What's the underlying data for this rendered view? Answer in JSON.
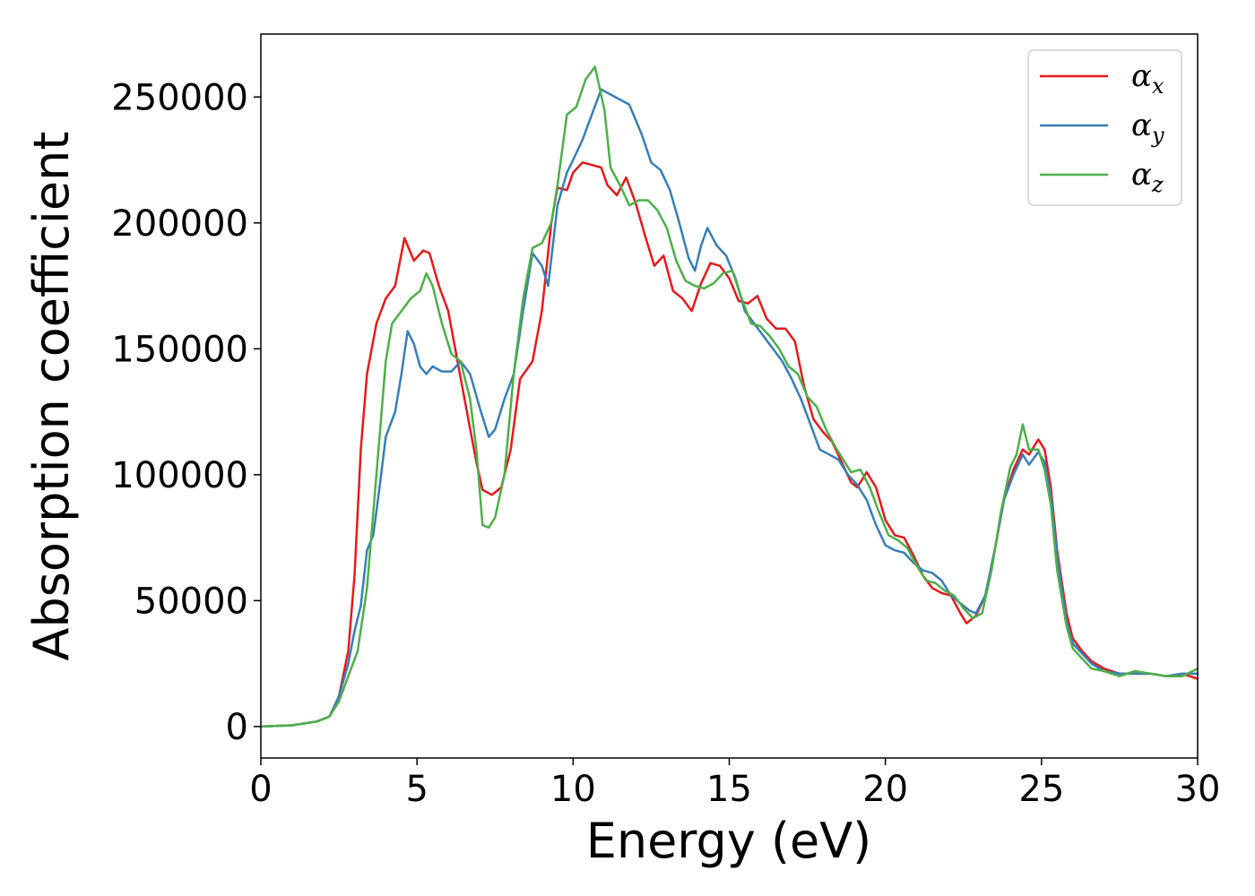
{
  "chart_data": {
    "type": "line",
    "xlabel": "Energy (eV)",
    "ylabel": "Absorption coefficient",
    "xlim": [
      0,
      30
    ],
    "ylim": [
      -12500,
      275000
    ],
    "xticks": [
      0,
      5,
      10,
      15,
      20,
      25,
      30
    ],
    "yticks": [
      0,
      50000,
      100000,
      150000,
      200000,
      250000
    ],
    "grid": false,
    "legend_position": "top-right",
    "series": [
      {
        "name": "α_x",
        "legend_base": "α",
        "legend_sub": "x",
        "color": "#e41a1c",
        "points": [
          [
            0,
            0
          ],
          [
            1,
            500
          ],
          [
            1.8,
            2000
          ],
          [
            2.2,
            4000
          ],
          [
            2.5,
            12000
          ],
          [
            2.8,
            30000
          ],
          [
            3.0,
            60000
          ],
          [
            3.2,
            110000
          ],
          [
            3.4,
            140000
          ],
          [
            3.7,
            160000
          ],
          [
            4.0,
            170000
          ],
          [
            4.3,
            175000
          ],
          [
            4.6,
            194000
          ],
          [
            4.9,
            185000
          ],
          [
            5.2,
            189000
          ],
          [
            5.4,
            188000
          ],
          [
            5.7,
            175000
          ],
          [
            6.0,
            165000
          ],
          [
            6.3,
            145000
          ],
          [
            6.6,
            125000
          ],
          [
            6.9,
            105000
          ],
          [
            7.1,
            94000
          ],
          [
            7.4,
            92000
          ],
          [
            7.7,
            95000
          ],
          [
            8.0,
            110000
          ],
          [
            8.3,
            138000
          ],
          [
            8.7,
            145000
          ],
          [
            9.0,
            165000
          ],
          [
            9.3,
            200000
          ],
          [
            9.5,
            214000
          ],
          [
            9.8,
            213000
          ],
          [
            10.0,
            220000
          ],
          [
            10.3,
            224000
          ],
          [
            10.6,
            223000
          ],
          [
            10.9,
            222000
          ],
          [
            11.1,
            215000
          ],
          [
            11.4,
            211000
          ],
          [
            11.7,
            218000
          ],
          [
            12.0,
            208000
          ],
          [
            12.3,
            195000
          ],
          [
            12.6,
            183000
          ],
          [
            12.9,
            187000
          ],
          [
            13.2,
            173000
          ],
          [
            13.5,
            170000
          ],
          [
            13.8,
            165000
          ],
          [
            14.1,
            176000
          ],
          [
            14.4,
            184000
          ],
          [
            14.7,
            183000
          ],
          [
            15.0,
            178000
          ],
          [
            15.3,
            169000
          ],
          [
            15.6,
            168000
          ],
          [
            15.9,
            171000
          ],
          [
            16.2,
            162000
          ],
          [
            16.5,
            158000
          ],
          [
            16.8,
            158000
          ],
          [
            17.1,
            153000
          ],
          [
            17.4,
            135000
          ],
          [
            17.7,
            122000
          ],
          [
            18.0,
            117000
          ],
          [
            18.3,
            113000
          ],
          [
            18.6,
            105000
          ],
          [
            18.9,
            97000
          ],
          [
            19.1,
            95000
          ],
          [
            19.4,
            101000
          ],
          [
            19.7,
            95000
          ],
          [
            20.0,
            82000
          ],
          [
            20.3,
            76000
          ],
          [
            20.6,
            75000
          ],
          [
            20.9,
            68000
          ],
          [
            21.2,
            60000
          ],
          [
            21.5,
            55000
          ],
          [
            21.8,
            53000
          ],
          [
            22.1,
            52000
          ],
          [
            22.4,
            45000
          ],
          [
            22.6,
            41000
          ],
          [
            22.9,
            44000
          ],
          [
            23.2,
            52000
          ],
          [
            23.5,
            70000
          ],
          [
            23.8,
            90000
          ],
          [
            24.1,
            102000
          ],
          [
            24.4,
            110000
          ],
          [
            24.6,
            108000
          ],
          [
            24.9,
            114000
          ],
          [
            25.1,
            110000
          ],
          [
            25.3,
            95000
          ],
          [
            25.5,
            70000
          ],
          [
            25.8,
            45000
          ],
          [
            26.0,
            35000
          ],
          [
            26.3,
            30000
          ],
          [
            26.6,
            26000
          ],
          [
            27.0,
            23000
          ],
          [
            27.5,
            21000
          ],
          [
            28.0,
            21000
          ],
          [
            28.5,
            21000
          ],
          [
            29.0,
            20000
          ],
          [
            29.5,
            21000
          ],
          [
            30,
            19000
          ]
        ]
      },
      {
        "name": "α_y",
        "legend_base": "α",
        "legend_sub": "y",
        "color": "#377eb8",
        "points": [
          [
            0,
            0
          ],
          [
            1,
            500
          ],
          [
            1.8,
            2000
          ],
          [
            2.2,
            4000
          ],
          [
            2.5,
            12000
          ],
          [
            2.8,
            25000
          ],
          [
            3.0,
            38000
          ],
          [
            3.2,
            48000
          ],
          [
            3.4,
            70000
          ],
          [
            3.6,
            76000
          ],
          [
            3.8,
            95000
          ],
          [
            4.0,
            115000
          ],
          [
            4.3,
            125000
          ],
          [
            4.5,
            140000
          ],
          [
            4.7,
            157000
          ],
          [
            4.9,
            152000
          ],
          [
            5.1,
            143000
          ],
          [
            5.3,
            140000
          ],
          [
            5.5,
            143000
          ],
          [
            5.8,
            141000
          ],
          [
            6.1,
            141000
          ],
          [
            6.4,
            145000
          ],
          [
            6.7,
            140000
          ],
          [
            7.0,
            127000
          ],
          [
            7.3,
            115000
          ],
          [
            7.5,
            118000
          ],
          [
            7.8,
            130000
          ],
          [
            8.1,
            140000
          ],
          [
            8.4,
            165000
          ],
          [
            8.7,
            188000
          ],
          [
            9.0,
            183000
          ],
          [
            9.2,
            175000
          ],
          [
            9.5,
            207000
          ],
          [
            9.8,
            220000
          ],
          [
            10.0,
            225000
          ],
          [
            10.3,
            233000
          ],
          [
            10.6,
            243000
          ],
          [
            10.9,
            253000
          ],
          [
            11.2,
            251000
          ],
          [
            11.5,
            249000
          ],
          [
            11.8,
            247000
          ],
          [
            12.2,
            235000
          ],
          [
            12.5,
            224000
          ],
          [
            12.8,
            221000
          ],
          [
            13.1,
            213000
          ],
          [
            13.4,
            200000
          ],
          [
            13.7,
            186000
          ],
          [
            13.9,
            181000
          ],
          [
            14.1,
            191000
          ],
          [
            14.3,
            198000
          ],
          [
            14.6,
            191000
          ],
          [
            14.9,
            187000
          ],
          [
            15.2,
            178000
          ],
          [
            15.5,
            165000
          ],
          [
            15.8,
            160000
          ],
          [
            16.1,
            155000
          ],
          [
            16.4,
            150000
          ],
          [
            16.7,
            145000
          ],
          [
            17.0,
            138000
          ],
          [
            17.3,
            130000
          ],
          [
            17.6,
            120000
          ],
          [
            17.9,
            110000
          ],
          [
            18.2,
            108000
          ],
          [
            18.5,
            106000
          ],
          [
            18.8,
            100000
          ],
          [
            19.1,
            96000
          ],
          [
            19.4,
            90000
          ],
          [
            19.7,
            80000
          ],
          [
            20.0,
            72000
          ],
          [
            20.3,
            70000
          ],
          [
            20.6,
            69000
          ],
          [
            20.9,
            65000
          ],
          [
            21.2,
            62000
          ],
          [
            21.5,
            61000
          ],
          [
            21.8,
            58000
          ],
          [
            22.1,
            52000
          ],
          [
            22.4,
            49000
          ],
          [
            22.7,
            46000
          ],
          [
            22.9,
            45000
          ],
          [
            23.2,
            52000
          ],
          [
            23.5,
            70000
          ],
          [
            23.8,
            90000
          ],
          [
            24.1,
            100000
          ],
          [
            24.4,
            108000
          ],
          [
            24.6,
            104000
          ],
          [
            24.9,
            109000
          ],
          [
            25.1,
            105000
          ],
          [
            25.3,
            92000
          ],
          [
            25.5,
            68000
          ],
          [
            25.8,
            42000
          ],
          [
            26.0,
            33000
          ],
          [
            26.3,
            29000
          ],
          [
            26.6,
            25000
          ],
          [
            27.0,
            22000
          ],
          [
            27.5,
            21000
          ],
          [
            28.0,
            21000
          ],
          [
            28.5,
            21000
          ],
          [
            29.0,
            20000
          ],
          [
            29.5,
            21000
          ],
          [
            30,
            21000
          ]
        ]
      },
      {
        "name": "α_z",
        "legend_base": "α",
        "legend_sub": "z",
        "color": "#4daf4a",
        "points": [
          [
            0,
            0
          ],
          [
            1,
            500
          ],
          [
            1.8,
            2000
          ],
          [
            2.2,
            4000
          ],
          [
            2.5,
            10000
          ],
          [
            2.8,
            20000
          ],
          [
            3.1,
            30000
          ],
          [
            3.4,
            55000
          ],
          [
            3.6,
            85000
          ],
          [
            3.8,
            115000
          ],
          [
            4.0,
            145000
          ],
          [
            4.2,
            160000
          ],
          [
            4.5,
            165000
          ],
          [
            4.8,
            170000
          ],
          [
            5.1,
            173000
          ],
          [
            5.3,
            180000
          ],
          [
            5.5,
            175000
          ],
          [
            5.8,
            160000
          ],
          [
            6.1,
            148000
          ],
          [
            6.4,
            145000
          ],
          [
            6.7,
            130000
          ],
          [
            6.9,
            110000
          ],
          [
            7.1,
            80000
          ],
          [
            7.3,
            79000
          ],
          [
            7.5,
            83000
          ],
          [
            7.8,
            100000
          ],
          [
            8.1,
            140000
          ],
          [
            8.4,
            170000
          ],
          [
            8.7,
            190000
          ],
          [
            9.0,
            192000
          ],
          [
            9.3,
            200000
          ],
          [
            9.5,
            215000
          ],
          [
            9.8,
            243000
          ],
          [
            10.1,
            246000
          ],
          [
            10.4,
            257000
          ],
          [
            10.7,
            262000
          ],
          [
            11.0,
            245000
          ],
          [
            11.2,
            222000
          ],
          [
            11.5,
            215000
          ],
          [
            11.8,
            207000
          ],
          [
            12.1,
            209000
          ],
          [
            12.4,
            209000
          ],
          [
            12.7,
            205000
          ],
          [
            13.0,
            198000
          ],
          [
            13.3,
            185000
          ],
          [
            13.6,
            177000
          ],
          [
            13.9,
            175000
          ],
          [
            14.2,
            174000
          ],
          [
            14.5,
            176000
          ],
          [
            14.8,
            180000
          ],
          [
            15.1,
            181000
          ],
          [
            15.4,
            170000
          ],
          [
            15.7,
            160000
          ],
          [
            16.0,
            159000
          ],
          [
            16.3,
            155000
          ],
          [
            16.6,
            150000
          ],
          [
            16.9,
            143000
          ],
          [
            17.2,
            140000
          ],
          [
            17.5,
            131000
          ],
          [
            17.8,
            127000
          ],
          [
            18.1,
            118000
          ],
          [
            18.4,
            111000
          ],
          [
            18.7,
            105000
          ],
          [
            18.9,
            101000
          ],
          [
            19.2,
            102000
          ],
          [
            19.5,
            95000
          ],
          [
            19.8,
            85000
          ],
          [
            20.1,
            76000
          ],
          [
            20.4,
            74000
          ],
          [
            20.7,
            71000
          ],
          [
            21.0,
            64000
          ],
          [
            21.3,
            58000
          ],
          [
            21.6,
            57000
          ],
          [
            21.9,
            54000
          ],
          [
            22.2,
            52000
          ],
          [
            22.5,
            47000
          ],
          [
            22.8,
            43000
          ],
          [
            23.1,
            45000
          ],
          [
            23.4,
            62000
          ],
          [
            23.7,
            85000
          ],
          [
            24.0,
            103000
          ],
          [
            24.2,
            108000
          ],
          [
            24.4,
            120000
          ],
          [
            24.6,
            110000
          ],
          [
            24.9,
            110000
          ],
          [
            25.1,
            102000
          ],
          [
            25.3,
            88000
          ],
          [
            25.5,
            62000
          ],
          [
            25.8,
            40000
          ],
          [
            26.0,
            31000
          ],
          [
            26.3,
            27000
          ],
          [
            26.6,
            23000
          ],
          [
            27.0,
            22000
          ],
          [
            27.5,
            20000
          ],
          [
            28.0,
            22000
          ],
          [
            28.5,
            21000
          ],
          [
            29.0,
            20000
          ],
          [
            29.5,
            20000
          ],
          [
            30,
            23000
          ]
        ]
      }
    ]
  }
}
